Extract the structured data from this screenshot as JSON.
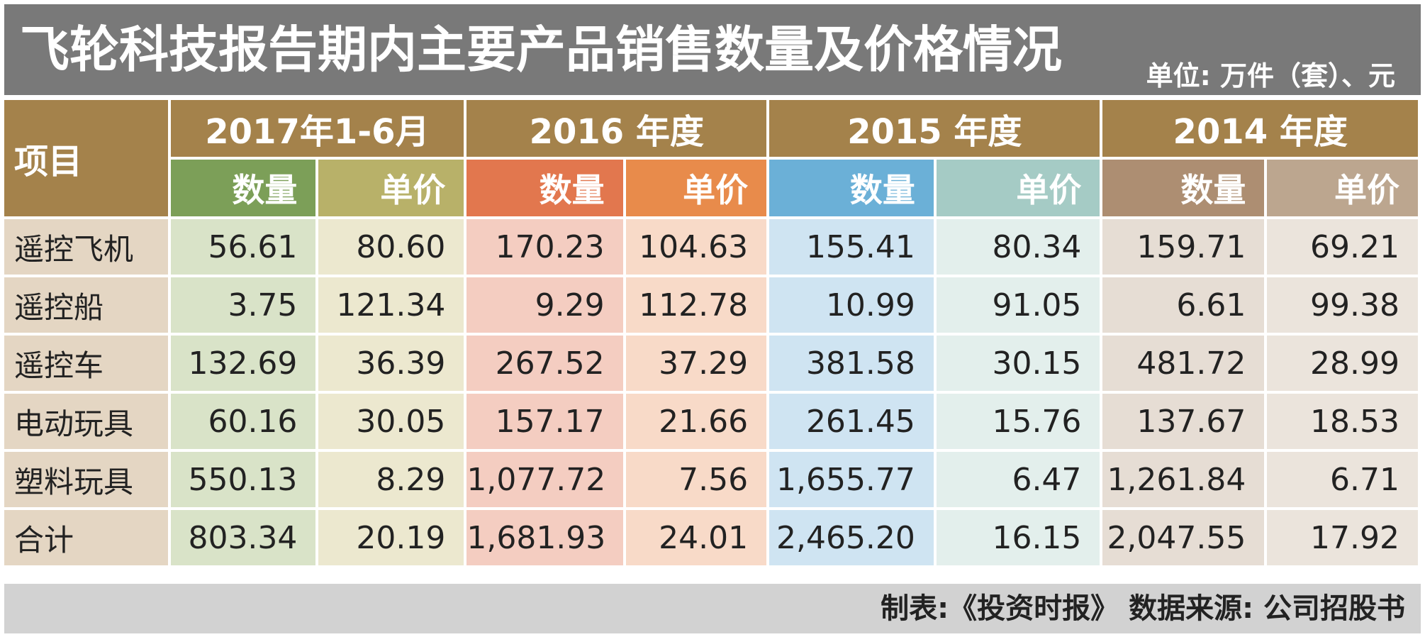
{
  "title": "飞轮科技报告期内主要产品销售数量及价格情况",
  "unit": "单位: 万件（套）、元",
  "footer": "制表:《投资时报》  数据来源: 公司招股书",
  "chart_data": {
    "type": "table",
    "row_header": "项目",
    "groups": [
      "2017年1-6月",
      "2016 年度",
      "2015 年度",
      "2014 年度"
    ],
    "sub_headers": [
      "数量",
      "单价"
    ],
    "rows": [
      {
        "label": "遥控飞机",
        "values": [
          "56.61",
          "80.60",
          "170.23",
          "104.63",
          "155.41",
          "80.34",
          "159.71",
          "69.21"
        ]
      },
      {
        "label": "遥控船",
        "values": [
          "3.75",
          "121.34",
          "9.29",
          "112.78",
          "10.99",
          "91.05",
          "6.61",
          "99.38"
        ]
      },
      {
        "label": "遥控车",
        "values": [
          "132.69",
          "36.39",
          "267.52",
          "37.29",
          "381.58",
          "30.15",
          "481.72",
          "28.99"
        ]
      },
      {
        "label": "电动玩具",
        "values": [
          "60.16",
          "30.05",
          "157.17",
          "21.66",
          "261.45",
          "15.76",
          "137.67",
          "18.53"
        ]
      },
      {
        "label": "塑料玩具",
        "values": [
          "550.13",
          "8.29",
          "1,077.72",
          "7.56",
          "1,655.77",
          "6.47",
          "1,261.84",
          "6.71"
        ]
      },
      {
        "label": "合计",
        "values": [
          "803.34",
          "20.19",
          "1,681.93",
          "24.01",
          "2,465.20",
          "16.15",
          "2,047.55",
          "17.92"
        ]
      }
    ]
  },
  "colors": {
    "title_bg": "#797979",
    "header_bg": "#a4824b",
    "row_label_bg": "#e4d6c3",
    "footer_bg": "#d2d2d2",
    "sub_header_bg": [
      "#7c9f58",
      "#b8b169",
      "#e2774e",
      "#e88b4b",
      "#6bb0d7",
      "#a5cbc5",
      "#ad8e72",
      "#bca68f"
    ],
    "cell_bg": [
      "#d9e3c8",
      "#ece8cf",
      "#f4cdc1",
      "#f8dac8",
      "#cfe4f2",
      "#e3efec",
      "#e6ddd4",
      "#ebe4dc"
    ]
  }
}
